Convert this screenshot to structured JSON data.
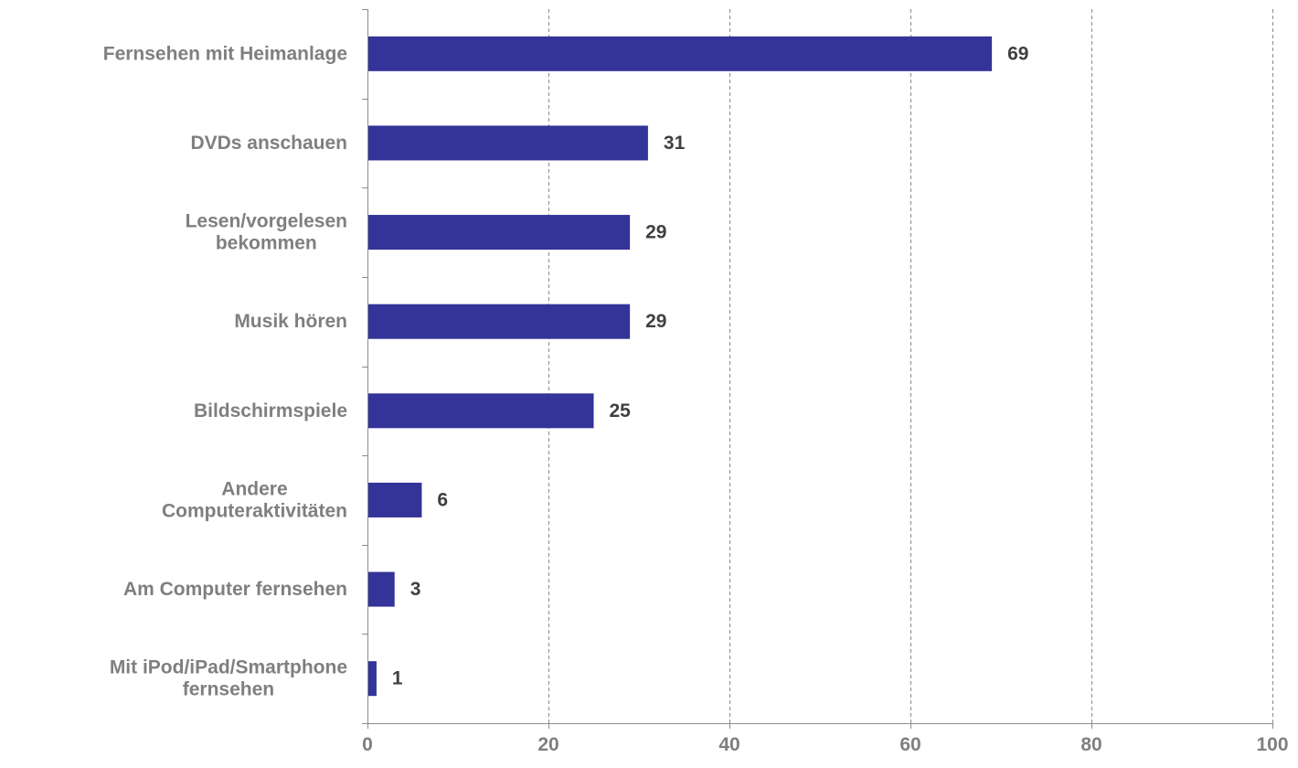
{
  "chart_data": {
    "type": "bar",
    "orientation": "horizontal",
    "categories": [
      [
        "Fernsehen mit Heimanlage"
      ],
      [
        "DVDs anschauen"
      ],
      [
        "Lesen/vorgelesen",
        "bekommen"
      ],
      [
        "Musik hören"
      ],
      [
        "Bildschirmspiele"
      ],
      [
        "Andere",
        "Computeraktivitäten"
      ],
      [
        "Am Computer fernsehen"
      ],
      [
        "Mit iPod/iPad/Smartphone",
        "fernsehen"
      ]
    ],
    "values": [
      69,
      31,
      29,
      29,
      25,
      6,
      3,
      1
    ],
    "xlim": [
      0,
      100
    ],
    "xticks": [
      0,
      20,
      40,
      60,
      80,
      100
    ],
    "grid": true,
    "legend": "none",
    "colors": {
      "bar": "#333399",
      "grid": "#8c8c8c",
      "axis": "#8c8c8c",
      "category_text": "#7f7f7f",
      "value_text": "#404040",
      "tick_text": "#7f7f7f"
    }
  }
}
